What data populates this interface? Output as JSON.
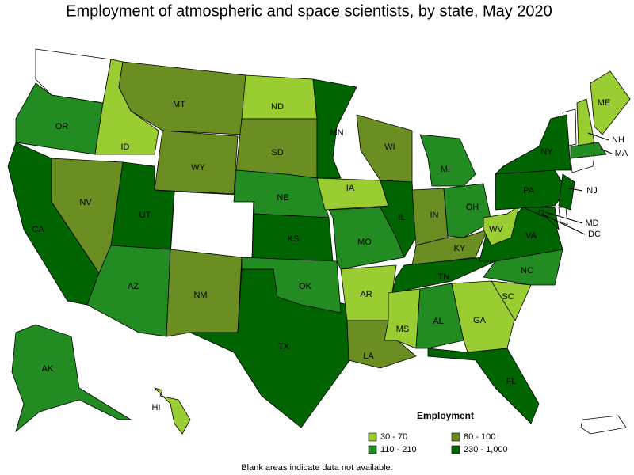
{
  "title": "Employment of atmospheric and space scientists, by state, May 2020",
  "legend": {
    "title": "Employment",
    "classes": [
      {
        "label": "30 - 70",
        "color": "#9acd32"
      },
      {
        "label": "80 - 100",
        "color": "#6b8e23"
      },
      {
        "label": "110 - 210",
        "color": "#228b22"
      },
      {
        "label": "230 - 1,000",
        "color": "#006400"
      }
    ]
  },
  "states": [
    {
      "abbr": "OR",
      "color": "#228b22"
    },
    {
      "abbr": "ID",
      "color": "#9acd32"
    },
    {
      "abbr": "MT",
      "color": "#6b8e23"
    },
    {
      "abbr": "WY",
      "color": "#6b8e23"
    },
    {
      "abbr": "ND",
      "color": "#9acd32"
    },
    {
      "abbr": "SD",
      "color": "#6b8e23"
    },
    {
      "abbr": "NE",
      "color": "#228b22"
    },
    {
      "abbr": "KS",
      "color": "#006400"
    },
    {
      "abbr": "UT",
      "color": "#006400"
    },
    {
      "abbr": "NV",
      "color": "#6b8e23"
    },
    {
      "abbr": "CA",
      "color": "#006400"
    },
    {
      "abbr": "AZ",
      "color": "#228b22"
    },
    {
      "abbr": "NM",
      "color": "#6b8e23"
    },
    {
      "abbr": "TX",
      "color": "#006400"
    },
    {
      "abbr": "OK",
      "color": "#228b22"
    },
    {
      "abbr": "MN",
      "color": "#006400"
    },
    {
      "abbr": "IA",
      "color": "#9acd32"
    },
    {
      "abbr": "MO",
      "color": "#228b22"
    },
    {
      "abbr": "AR",
      "color": "#9acd32"
    },
    {
      "abbr": "LA",
      "color": "#6b8e23"
    },
    {
      "abbr": "WI",
      "color": "#6b8e23"
    },
    {
      "abbr": "IL",
      "color": "#006400"
    },
    {
      "abbr": "MI",
      "color": "#228b22"
    },
    {
      "abbr": "IN",
      "color": "#6b8e23"
    },
    {
      "abbr": "OH",
      "color": "#228b22"
    },
    {
      "abbr": "KY",
      "color": "#6b8e23"
    },
    {
      "abbr": "TN",
      "color": "#006400"
    },
    {
      "abbr": "MS",
      "color": "#9acd32"
    },
    {
      "abbr": "AL",
      "color": "#228b22"
    },
    {
      "abbr": "GA",
      "color": "#9acd32"
    },
    {
      "abbr": "FL",
      "color": "#006400"
    },
    {
      "abbr": "SC",
      "color": "#9acd32"
    },
    {
      "abbr": "NC",
      "color": "#228b22"
    },
    {
      "abbr": "VA",
      "color": "#006400"
    },
    {
      "abbr": "WV",
      "color": "#9acd32"
    },
    {
      "abbr": "PA",
      "color": "#006400"
    },
    {
      "abbr": "NY",
      "color": "#006400"
    },
    {
      "abbr": "MD",
      "color": "#006400"
    },
    {
      "abbr": "NJ",
      "color": "#006400"
    },
    {
      "abbr": "NH",
      "color": "#9acd32"
    },
    {
      "abbr": "ME",
      "color": "#9acd32"
    },
    {
      "abbr": "MA",
      "color": "#228b22"
    },
    {
      "abbr": "AK",
      "color": "#228b22"
    },
    {
      "abbr": "HI",
      "color": "#9acd32"
    },
    {
      "abbr": "DC",
      "color": "#006400"
    }
  ],
  "note": "Blank areas indicate data not available."
}
